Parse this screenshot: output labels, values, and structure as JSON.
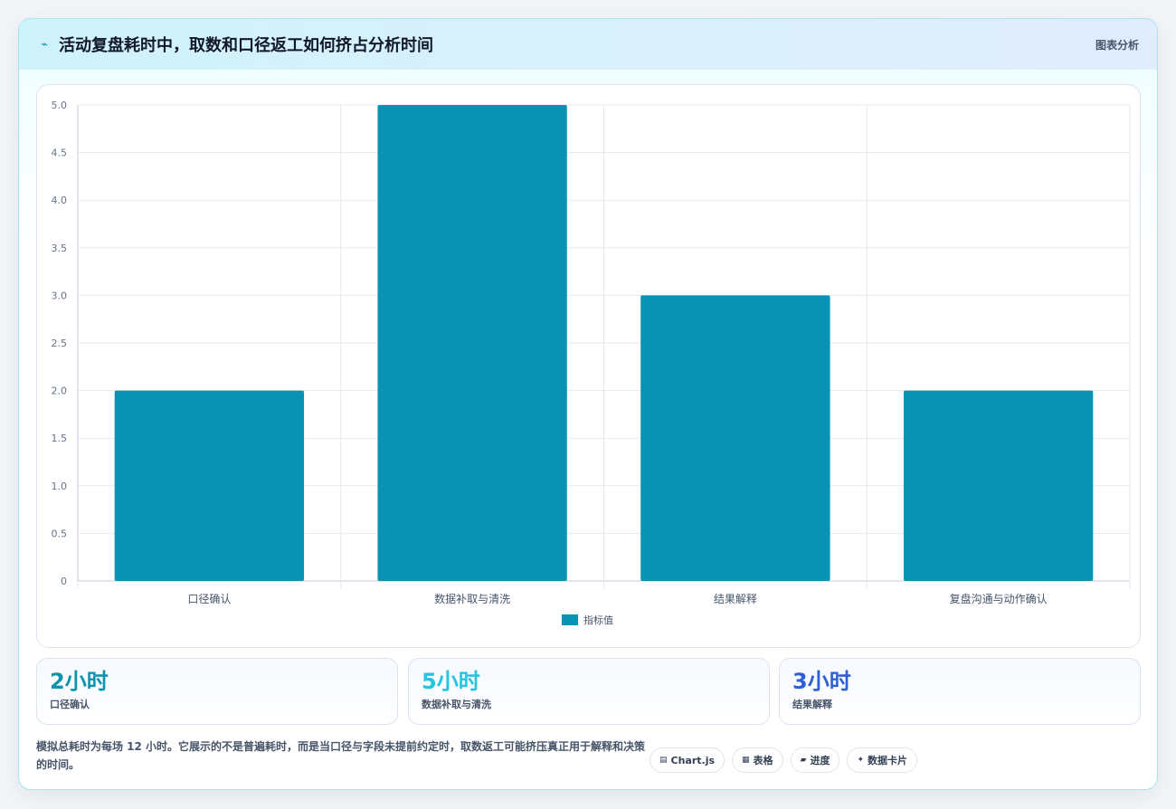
{
  "header": {
    "icon": "spark-icon",
    "title": "活动复盘耗时中，取数和口径返工如何挤占分析时间",
    "tag": "图表分析"
  },
  "chart_data": {
    "type": "bar",
    "categories": [
      "口径确认",
      "数据补取与清洗",
      "结果解释",
      "复盘沟通与动作确认"
    ],
    "series": [
      {
        "name": "指标值",
        "values": [
          2,
          5,
          3,
          2
        ],
        "color": "#0992b3"
      }
    ],
    "ylim": [
      0,
      5
    ],
    "yticks": [
      "0",
      "0.5",
      "1.0",
      "1.5",
      "2.0",
      "2.5",
      "3.0",
      "3.5",
      "4.0",
      "4.5",
      "5.0"
    ],
    "grid": true,
    "legend": "bottom"
  },
  "stats": [
    {
      "value": "2小时",
      "label": "口径确认",
      "color": "#0e93ad"
    },
    {
      "value": "5小时",
      "label": "数据补取与清洗",
      "color": "#22c6e0"
    },
    {
      "value": "3小时",
      "label": "结果解释",
      "color": "#2f5fd6"
    }
  ],
  "note": "模拟总耗时为每场 12 小时。它展示的不是普遍耗时，而是当口径与字段未提前约定时，取数返工可能挤压真正用于解释和决策的时间。",
  "chips": [
    {
      "icon": "▤",
      "label": "Chart.js"
    },
    {
      "icon": "▦",
      "label": "表格"
    },
    {
      "icon": "▰",
      "label": "进度"
    },
    {
      "icon": "✦",
      "label": "数据卡片"
    }
  ]
}
